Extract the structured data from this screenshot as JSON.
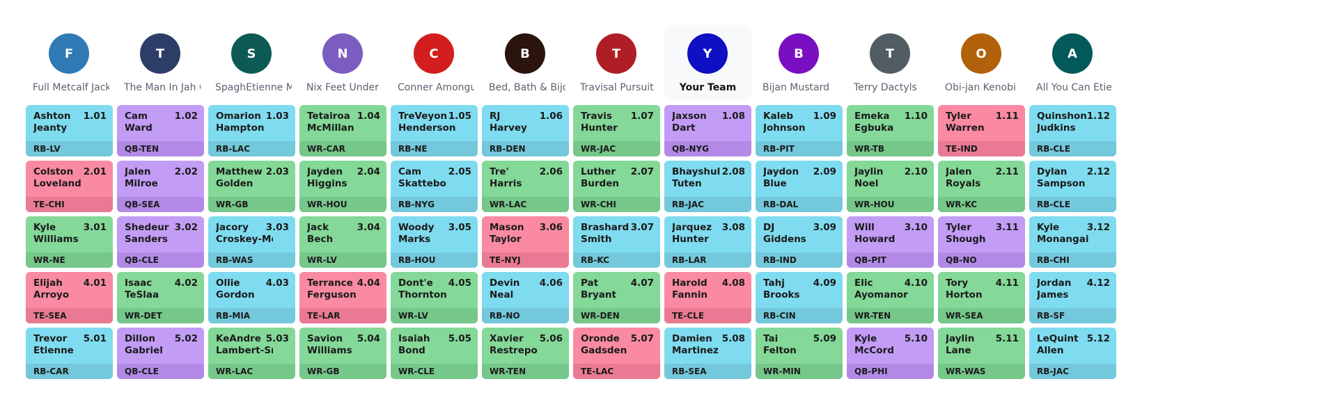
{
  "teams": [
    {
      "initial": "F",
      "name": "Full Metcalf Jacket",
      "color": "#2f7ab5"
    },
    {
      "initial": "T",
      "name": "The Man In Jah Castle",
      "color": "#2c3e67"
    },
    {
      "initial": "S",
      "name": "SpaghEtienne Monster",
      "color": "#0d5a55"
    },
    {
      "initial": "N",
      "name": "Nix Feet Under",
      "color": "#7b5cbf"
    },
    {
      "initial": "C",
      "name": "Conner Amongus",
      "color": "#d21e1e"
    },
    {
      "initial": "B",
      "name": "Bed, Bath & Bijon",
      "color": "#2b130e"
    },
    {
      "initial": "T",
      "name": "Travisal Pursuit",
      "color": "#b01e25"
    },
    {
      "initial": "Y",
      "name": "Your Team",
      "color": "#0f0fc4",
      "current": true
    },
    {
      "initial": "B",
      "name": "Bijan Mustard",
      "color": "#7a0fc2"
    },
    {
      "initial": "T",
      "name": "Terry Dactyls",
      "color": "#525c63"
    },
    {
      "initial": "O",
      "name": "Obi-jan Kenobi",
      "color": "#b0610a"
    },
    {
      "initial": "A",
      "name": "All You Can Etienne",
      "color": "#04595a"
    }
  ],
  "rounds": [
    [
      {
        "first": "Ashton",
        "last": "Jeanty",
        "pick": "1.01",
        "pos": "RB",
        "team": "LV"
      },
      {
        "first": "Cam",
        "last": "Ward",
        "pick": "1.02",
        "pos": "QB",
        "team": "TEN"
      },
      {
        "first": "Omarion",
        "last": "Hampton",
        "pick": "1.03",
        "pos": "RB",
        "team": "LAC"
      },
      {
        "first": "Tetairoa",
        "last": "McMillan",
        "pick": "1.04",
        "pos": "WR",
        "team": "CAR"
      },
      {
        "first": "TreVeyon",
        "last": "Henderson",
        "pick": "1.05",
        "pos": "RB",
        "team": "NE"
      },
      {
        "first": "RJ",
        "last": "Harvey",
        "pick": "1.06",
        "pos": "RB",
        "team": "DEN"
      },
      {
        "first": "Travis",
        "last": "Hunter",
        "pick": "1.07",
        "pos": "WR",
        "team": "JAC"
      },
      {
        "first": "Jaxson",
        "last": "Dart",
        "pick": "1.08",
        "pos": "QB",
        "team": "NYG"
      },
      {
        "first": "Kaleb",
        "last": "Johnson",
        "pick": "1.09",
        "pos": "RB",
        "team": "PIT"
      },
      {
        "first": "Emeka",
        "last": "Egbuka",
        "pick": "1.10",
        "pos": "WR",
        "team": "TB"
      },
      {
        "first": "Tyler",
        "last": "Warren",
        "pick": "1.11",
        "pos": "TE",
        "team": "IND"
      },
      {
        "first": "Quinshon",
        "last": "Judkins",
        "pick": "1.12",
        "pos": "RB",
        "team": "CLE"
      }
    ],
    [
      {
        "first": "Colston",
        "last": "Loveland",
        "pick": "2.01",
        "pos": "TE",
        "team": "CHI"
      },
      {
        "first": "Jalen",
        "last": "Milroe",
        "pick": "2.02",
        "pos": "QB",
        "team": "SEA"
      },
      {
        "first": "Matthew",
        "last": "Golden",
        "pick": "2.03",
        "pos": "WR",
        "team": "GB"
      },
      {
        "first": "Jayden",
        "last": "Higgins",
        "pick": "2.04",
        "pos": "WR",
        "team": "HOU"
      },
      {
        "first": "Cam",
        "last": "Skattebo",
        "pick": "2.05",
        "pos": "RB",
        "team": "NYG"
      },
      {
        "first": "Tre'",
        "last": "Harris",
        "pick": "2.06",
        "pos": "WR",
        "team": "LAC"
      },
      {
        "first": "Luther",
        "last": "Burden",
        "pick": "2.07",
        "pos": "WR",
        "team": "CHI"
      },
      {
        "first": "Bhayshul",
        "last": "Tuten",
        "pick": "2.08",
        "pos": "RB",
        "team": "JAC"
      },
      {
        "first": "Jaydon",
        "last": "Blue",
        "pick": "2.09",
        "pos": "RB",
        "team": "DAL"
      },
      {
        "first": "Jaylin",
        "last": "Noel",
        "pick": "2.10",
        "pos": "WR",
        "team": "HOU"
      },
      {
        "first": "Jalen",
        "last": "Royals",
        "pick": "2.11",
        "pos": "WR",
        "team": "KC"
      },
      {
        "first": "Dylan",
        "last": "Sampson",
        "pick": "2.12",
        "pos": "RB",
        "team": "CLE"
      }
    ],
    [
      {
        "first": "Kyle",
        "last": "Williams",
        "pick": "3.01",
        "pos": "WR",
        "team": "NE"
      },
      {
        "first": "Shedeur",
        "last": "Sanders",
        "pick": "3.02",
        "pos": "QB",
        "team": "CLE"
      },
      {
        "first": "Jacory",
        "last": "Croskey-Merritt",
        "pick": "3.03",
        "pos": "RB",
        "team": "WAS"
      },
      {
        "first": "Jack",
        "last": "Bech",
        "pick": "3.04",
        "pos": "WR",
        "team": "LV"
      },
      {
        "first": "Woody",
        "last": "Marks",
        "pick": "3.05",
        "pos": "RB",
        "team": "HOU"
      },
      {
        "first": "Mason",
        "last": "Taylor",
        "pick": "3.06",
        "pos": "TE",
        "team": "NYJ"
      },
      {
        "first": "Brashard",
        "last": "Smith",
        "pick": "3.07",
        "pos": "RB",
        "team": "KC"
      },
      {
        "first": "Jarquez",
        "last": "Hunter",
        "pick": "3.08",
        "pos": "RB",
        "team": "LAR"
      },
      {
        "first": "DJ",
        "last": "Giddens",
        "pick": "3.09",
        "pos": "RB",
        "team": "IND"
      },
      {
        "first": "Will",
        "last": "Howard",
        "pick": "3.10",
        "pos": "QB",
        "team": "PIT"
      },
      {
        "first": "Tyler",
        "last": "Shough",
        "pick": "3.11",
        "pos": "QB",
        "team": "NO"
      },
      {
        "first": "Kyle",
        "last": "Monangai",
        "pick": "3.12",
        "pos": "RB",
        "team": "CHI"
      }
    ],
    [
      {
        "first": "Elijah",
        "last": "Arroyo",
        "pick": "4.01",
        "pos": "TE",
        "team": "SEA"
      },
      {
        "first": "Isaac",
        "last": "TeSlaa",
        "pick": "4.02",
        "pos": "WR",
        "team": "DET"
      },
      {
        "first": "Ollie",
        "last": "Gordon",
        "pick": "4.03",
        "pos": "RB",
        "team": "MIA"
      },
      {
        "first": "Terrance",
        "last": "Ferguson",
        "pick": "4.04",
        "pos": "TE",
        "team": "LAR"
      },
      {
        "first": "Dont'e",
        "last": "Thornton",
        "pick": "4.05",
        "pos": "WR",
        "team": "LV"
      },
      {
        "first": "Devin",
        "last": "Neal",
        "pick": "4.06",
        "pos": "RB",
        "team": "NO"
      },
      {
        "first": "Pat",
        "last": "Bryant",
        "pick": "4.07",
        "pos": "WR",
        "team": "DEN"
      },
      {
        "first": "Harold",
        "last": "Fannin",
        "pick": "4.08",
        "pos": "TE",
        "team": "CLE"
      },
      {
        "first": "Tahj",
        "last": "Brooks",
        "pick": "4.09",
        "pos": "RB",
        "team": "CIN"
      },
      {
        "first": "Elic",
        "last": "Ayomanor",
        "pick": "4.10",
        "pos": "WR",
        "team": "TEN"
      },
      {
        "first": "Tory",
        "last": "Horton",
        "pick": "4.11",
        "pos": "WR",
        "team": "SEA"
      },
      {
        "first": "Jordan",
        "last": "James",
        "pick": "4.12",
        "pos": "RB",
        "team": "SF"
      }
    ],
    [
      {
        "first": "Trevor",
        "last": "Etienne",
        "pick": "5.01",
        "pos": "RB",
        "team": "CAR"
      },
      {
        "first": "Dillon",
        "last": "Gabriel",
        "pick": "5.02",
        "pos": "QB",
        "team": "CLE"
      },
      {
        "first": "KeAndre",
        "last": "Lambert-Smith",
        "pick": "5.03",
        "pos": "WR",
        "team": "LAC"
      },
      {
        "first": "Savion",
        "last": "Williams",
        "pick": "5.04",
        "pos": "WR",
        "team": "GB"
      },
      {
        "first": "Isaiah",
        "last": "Bond",
        "pick": "5.05",
        "pos": "WR",
        "team": "CLE"
      },
      {
        "first": "Xavier",
        "last": "Restrepo",
        "pick": "5.06",
        "pos": "WR",
        "team": "TEN"
      },
      {
        "first": "Oronde",
        "last": "Gadsden",
        "pick": "5.07",
        "pos": "TE",
        "team": "LAC"
      },
      {
        "first": "Damien",
        "last": "Martinez",
        "pick": "5.08",
        "pos": "RB",
        "team": "SEA"
      },
      {
        "first": "Tai",
        "last": "Felton",
        "pick": "5.09",
        "pos": "WR",
        "team": "MIN"
      },
      {
        "first": "Kyle",
        "last": "McCord",
        "pick": "5.10",
        "pos": "QB",
        "team": "PHI"
      },
      {
        "first": "Jaylin",
        "last": "Lane",
        "pick": "5.11",
        "pos": "WR",
        "team": "WAS"
      },
      {
        "first": "LeQuint",
        "last": "Allen",
        "pick": "5.12",
        "pos": "RB",
        "team": "JAC"
      }
    ]
  ]
}
